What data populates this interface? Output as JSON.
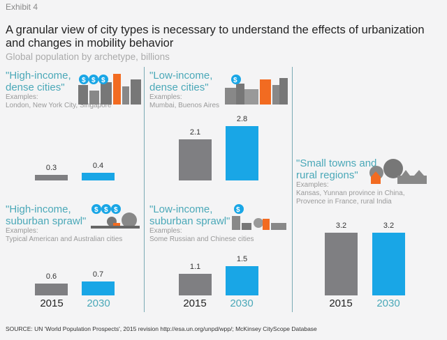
{
  "header": {
    "exhibit": "Exhibit 4",
    "title": "A granular view of city types is necessary to understand the effects of urbanization and changes in mobility behavior",
    "subtitle": "Global population by archetype, billions"
  },
  "colors": {
    "y2015": "#7f7f82",
    "y2030": "#19a6e6",
    "panel_title": "#4aa8b8",
    "accent_orange": "#f26b21"
  },
  "years": [
    "2015",
    "2030"
  ],
  "chart_data": [
    {
      "type": "bar",
      "title": "\"High-income, dense cities\"",
      "examples_label": "Examples:",
      "examples": "London, New York City, Singapore",
      "categories": [
        "2015",
        "2030"
      ],
      "values": [
        0.3,
        0.4
      ],
      "labels": [
        "0.3",
        "0.4"
      ],
      "icon": "city-skyline-dollar-icon"
    },
    {
      "type": "bar",
      "title": "\"High-income, suburban sprawl\"",
      "examples_label": "Examples:",
      "examples": "Typical American and Australian cities",
      "categories": [
        "2015",
        "2030"
      ],
      "values": [
        0.6,
        0.7
      ],
      "labels": [
        "0.6",
        "0.7"
      ],
      "icon": "suburb-dollar-icon"
    },
    {
      "type": "bar",
      "title": "\"Low-income, dense cities\"",
      "examples_label": "Examples:",
      "examples": "Mumbai, Buenos Aires",
      "categories": [
        "2015",
        "2030"
      ],
      "values": [
        2.1,
        2.8
      ],
      "labels": [
        "2.1",
        "2.8"
      ],
      "icon": "dense-city-dollar-icon"
    },
    {
      "type": "bar",
      "title": "\"Low-income, suburban sprawl\"",
      "examples_label": "Examples:",
      "examples": "Some Russian and Chinese cities",
      "categories": [
        "2015",
        "2030"
      ],
      "values": [
        1.1,
        1.5
      ],
      "labels": [
        "1.1",
        "1.5"
      ],
      "icon": "sprawl-dollar-icon"
    },
    {
      "type": "bar",
      "title": "\"Small towns and rural regions\"",
      "examples_label": "Examples:",
      "examples": "Kansas, Yunnan province in China, Provence in France, rural India",
      "categories": [
        "2015",
        "2030"
      ],
      "values": [
        3.2,
        3.2
      ],
      "labels": [
        "3.2",
        "3.2"
      ],
      "icon": "town-trees-icon"
    }
  ],
  "source": "SOURCE: UN 'World Population Prospects', 2015 revision http://esa.un.org/unpd/wpp/; McKinsey CityScope Database"
}
